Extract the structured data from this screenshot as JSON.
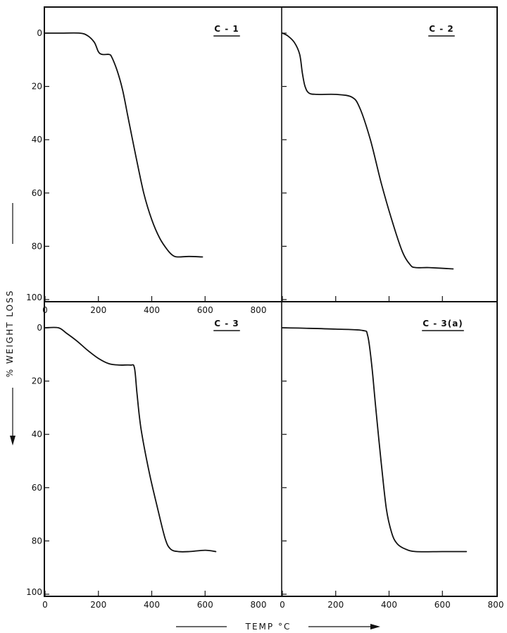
{
  "figure": {
    "ylabel": "% WEIGHT   LOSS",
    "xlabel": "TEMP  °C"
  },
  "chart_data": [
    {
      "type": "line",
      "panel": "top-left",
      "label": "C - 1",
      "xlim": [
        0,
        800
      ],
      "ylim": [
        0,
        100
      ],
      "y_inverted": true,
      "xticks": [
        0,
        200,
        400,
        600,
        800
      ],
      "yticks": [
        "0",
        "20",
        "40",
        "60",
        "80",
        "100"
      ],
      "x": [
        0,
        60,
        130,
        160,
        185,
        200,
        215,
        240,
        250,
        270,
        290,
        310,
        340,
        370,
        400,
        430,
        460,
        480,
        500,
        540,
        590
      ],
      "y": [
        0,
        0,
        0,
        1,
        3.5,
        7,
        8,
        8,
        9,
        14,
        21,
        31,
        46,
        60,
        70,
        77,
        81.5,
        83.5,
        84,
        83.8,
        84
      ]
    },
    {
      "type": "line",
      "panel": "top-right",
      "label": "C - 2",
      "xlim": [
        0,
        800
      ],
      "ylim": [
        0,
        100
      ],
      "y_inverted": true,
      "xticks": [],
      "yticks": [],
      "x": [
        0,
        20,
        45,
        65,
        75,
        85,
        100,
        130,
        200,
        260,
        290,
        330,
        370,
        410,
        450,
        480,
        500,
        550,
        640
      ],
      "y": [
        0,
        1,
        3.5,
        8,
        15,
        20,
        22.5,
        23,
        23,
        24,
        28,
        40,
        56,
        70,
        82,
        87,
        88,
        88,
        88.5
      ]
    },
    {
      "type": "line",
      "panel": "bottom-left",
      "label": "C - 3",
      "xlim": [
        0,
        800
      ],
      "ylim": [
        0,
        100
      ],
      "y_inverted": true,
      "xticks": [
        "0",
        "200",
        "400",
        "600",
        "800"
      ],
      "yticks": [
        "0",
        "20",
        "40",
        "60",
        "80",
        "100"
      ],
      "x": [
        0,
        50,
        80,
        120,
        160,
        200,
        240,
        280,
        320,
        335,
        345,
        360,
        390,
        420,
        450,
        470,
        500,
        540,
        600,
        640
      ],
      "y": [
        0,
        0,
        2,
        5,
        8.5,
        11.5,
        13.5,
        14,
        14,
        15,
        25,
        38,
        54,
        67,
        79,
        83,
        84,
        84,
        83.5,
        84
      ]
    },
    {
      "type": "line",
      "panel": "bottom-right",
      "label": "C - 3(a)",
      "xlim": [
        0,
        800
      ],
      "ylim": [
        0,
        100
      ],
      "y_inverted": true,
      "xticks": [
        "0",
        "200",
        "400",
        "600",
        "800"
      ],
      "yticks": [],
      "x": [
        0,
        100,
        200,
        300,
        320,
        335,
        350,
        370,
        390,
        410,
        430,
        460,
        500,
        600,
        690
      ],
      "y": [
        0,
        0.2,
        0.5,
        1,
        3,
        14,
        30,
        50,
        68,
        77,
        81,
        83,
        84,
        84,
        84
      ]
    }
  ]
}
